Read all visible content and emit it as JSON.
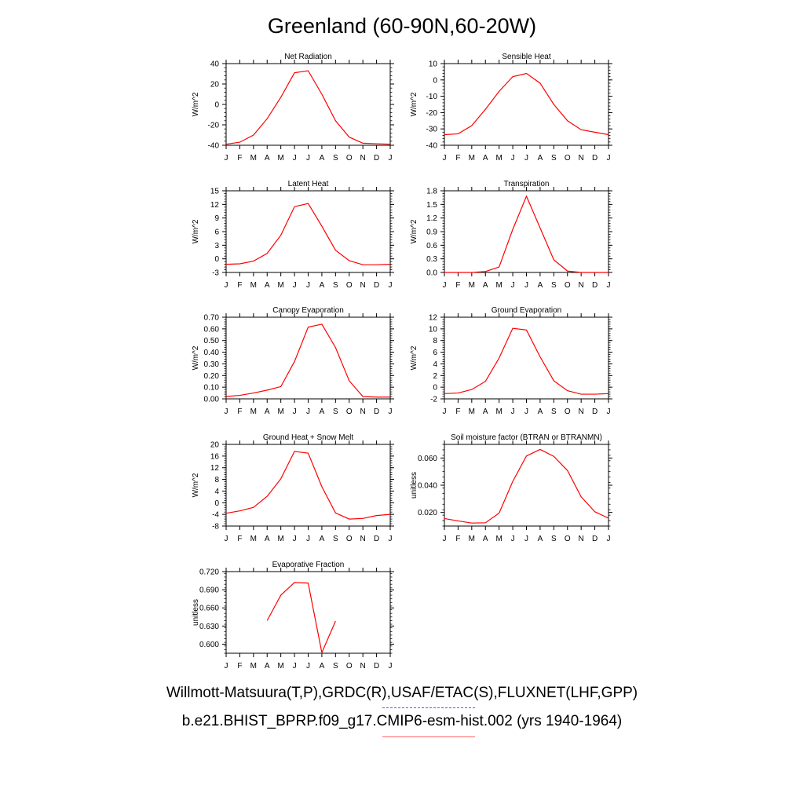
{
  "title": "Greenland (60-90N,60-20W)",
  "footer": {
    "line1": "Willmott-Matsuura(T,P),GRDC(R),USAF/ETAC(S),FLUXNET(LHF,GPP)",
    "line2": "b.e21.BHIST_BPRP.f09_g17.CMIP6-esm-hist.002 (yrs 1940-1964)"
  },
  "colors": {
    "series": "#ff0000",
    "legend_obs": "#5555ff",
    "legend_model": "#ff6666",
    "axis": "#000000"
  },
  "month_labels": [
    "J",
    "F",
    "M",
    "A",
    "M",
    "J",
    "J",
    "A",
    "S",
    "O",
    "N",
    "D",
    "J"
  ],
  "chart_data": [
    {
      "type": "line",
      "title": "Net Radiation",
      "ylabel": "W/m^2",
      "ylim": [
        -40,
        40
      ],
      "yticks": [
        -40,
        -20,
        0,
        20,
        40
      ],
      "ytick_labels": [
        "-40",
        "-20",
        "0",
        "20",
        "40"
      ],
      "values": [
        -39,
        -37,
        -30,
        -14,
        7,
        31,
        33,
        10,
        -16,
        -32,
        -38,
        -38.5,
        -39
      ]
    },
    {
      "type": "line",
      "title": "Sensible Heat",
      "ylabel": "W/m^2",
      "ylim": [
        -40,
        10
      ],
      "yticks": [
        -40,
        -30,
        -20,
        -10,
        0,
        10
      ],
      "ytick_labels": [
        "-40",
        "-30",
        "-20",
        "-10",
        "0",
        "10"
      ],
      "values": [
        -33.5,
        -33,
        -28,
        -18,
        -7,
        2,
        4,
        -2,
        -15,
        -25,
        -30.5,
        -32,
        -33.5
      ]
    },
    {
      "type": "line",
      "title": "Latent Heat",
      "ylabel": "W/m^2",
      "ylim": [
        -3,
        15
      ],
      "yticks": [
        -3,
        0,
        3,
        6,
        9,
        12,
        15
      ],
      "ytick_labels": [
        "-3",
        "0",
        "3",
        "6",
        "9",
        "12",
        "15"
      ],
      "values": [
        -1.2,
        -1.1,
        -0.5,
        1.2,
        5.2,
        11.5,
        12.2,
        7.2,
        1.9,
        -0.4,
        -1.3,
        -1.3,
        -1.2
      ]
    },
    {
      "type": "line",
      "title": "Transpiration",
      "ylabel": "W/m^2",
      "ylim": [
        0,
        1.8
      ],
      "yticks": [
        0,
        0.3,
        0.6,
        0.9,
        1.2,
        1.5,
        1.8
      ],
      "ytick_labels": [
        "0.0",
        "0.3",
        "0.6",
        "0.9",
        "1.2",
        "1.5",
        "1.8"
      ],
      "values": [
        0,
        0,
        0,
        0.02,
        0.12,
        0.95,
        1.68,
        0.98,
        0.28,
        0.03,
        0,
        0,
        0
      ]
    },
    {
      "type": "line",
      "title": "Canopy Evaporation",
      "ylabel": "W/m^2",
      "ylim": [
        0,
        0.7
      ],
      "yticks": [
        0,
        0.1,
        0.2,
        0.3,
        0.4,
        0.5,
        0.6,
        0.7
      ],
      "ytick_labels": [
        "0.00",
        "0.10",
        "0.20",
        "0.30",
        "0.40",
        "0.50",
        "0.60",
        "0.70"
      ],
      "values": [
        0.02,
        0.03,
        0.05,
        0.075,
        0.105,
        0.32,
        0.615,
        0.64,
        0.44,
        0.155,
        0.02,
        0.015,
        0.015
      ]
    },
    {
      "type": "line",
      "title": "Ground Evaporation",
      "ylabel": "W/m^2",
      "ylim": [
        -2,
        12
      ],
      "yticks": [
        -2,
        0,
        2,
        4,
        6,
        8,
        10,
        12
      ],
      "ytick_labels": [
        "-2",
        "0",
        "2",
        "4",
        "6",
        "8",
        "10",
        "12"
      ],
      "values": [
        -1.1,
        -1,
        -0.4,
        1,
        5,
        10.1,
        9.8,
        5.2,
        1.1,
        -0.6,
        -1.2,
        -1.2,
        -1.1
      ]
    },
    {
      "type": "line",
      "title": "Ground Heat + Snow Melt",
      "ylabel": "W/m^2",
      "ylim": [
        -8,
        20
      ],
      "yticks": [
        -8,
        -4,
        0,
        4,
        8,
        12,
        16,
        20
      ],
      "ytick_labels": [
        "-8",
        "-4",
        "0",
        "4",
        "8",
        "12",
        "16",
        "20"
      ],
      "values": [
        -3.6,
        -2.8,
        -1.6,
        2.2,
        8.2,
        17.6,
        17,
        5.5,
        -3.5,
        -5.6,
        -5.4,
        -4.4,
        -4
      ]
    },
    {
      "type": "line",
      "title": "Soil moisture factor (BTRAN or BTRANMN)",
      "ylabel": "unitless",
      "ylim": [
        0.01,
        0.07
      ],
      "yticks": [
        0.02,
        0.04,
        0.06
      ],
      "ytick_labels": [
        "0.020",
        "0.040",
        "0.060"
      ],
      "values": [
        0.0155,
        0.0138,
        0.0122,
        0.0124,
        0.0195,
        0.0428,
        0.0615,
        0.0663,
        0.0612,
        0.0508,
        0.0315,
        0.0205,
        0.0158
      ]
    },
    {
      "type": "line",
      "title": "Evaporative Fraction",
      "ylabel": "unitless",
      "ylim": [
        0.585,
        0.72
      ],
      "yticks": [
        0.6,
        0.63,
        0.66,
        0.69,
        0.72
      ],
      "ytick_labels": [
        "0.600",
        "0.630",
        "0.660",
        "0.690",
        "0.720"
      ],
      "values": [
        null,
        null,
        null,
        0.639,
        0.681,
        0.702,
        0.701,
        0.586,
        0.638,
        null,
        null,
        null,
        null
      ]
    }
  ]
}
